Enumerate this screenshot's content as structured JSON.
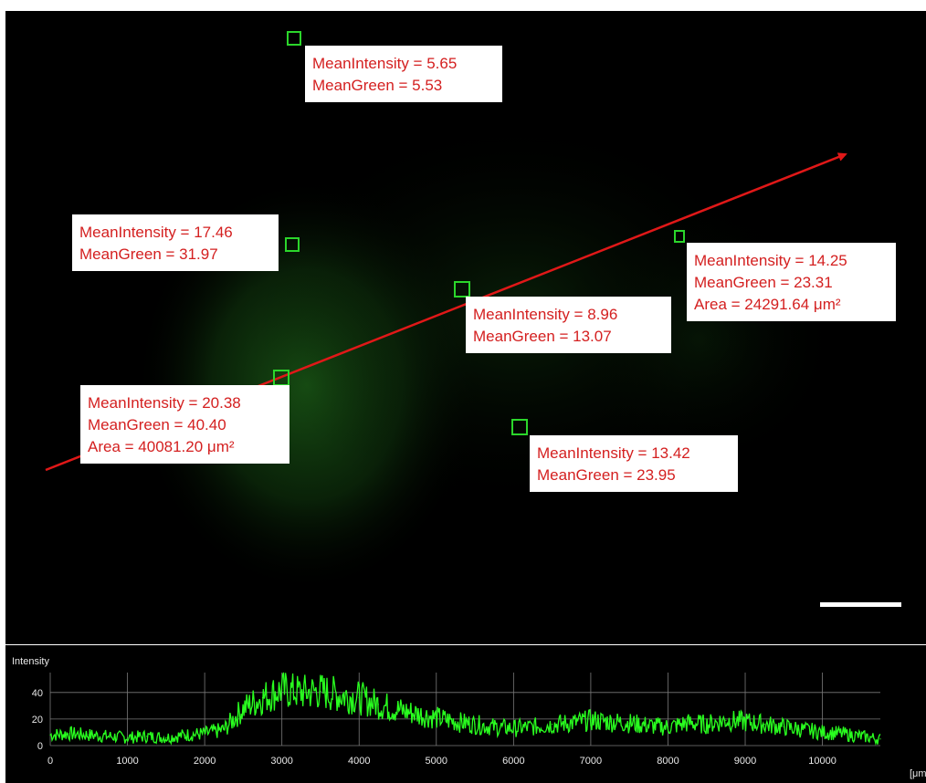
{
  "colors": {
    "background": "#000000",
    "label_text": "#d42020",
    "label_box": "#ffffff",
    "roi_box": "#2bd62b",
    "arrow": "#e01818",
    "profile_line": "#29ff1f",
    "grid": "#7a7a7a"
  },
  "annotations": [
    {
      "lines": [
        "MeanIntensity = 5.65",
        "MeanGreen = 5.53"
      ]
    },
    {
      "lines": [
        "MeanIntensity = 17.46",
        "MeanGreen = 31.97"
      ]
    },
    {
      "lines": [
        "MeanIntensity = 14.25",
        "MeanGreen = 23.31",
        "Area = 24291.64 μm²"
      ]
    },
    {
      "lines": [
        "MeanIntensity = 8.96",
        "MeanGreen = 13.07"
      ]
    },
    {
      "lines": [
        "MeanIntensity = 20.38",
        "MeanGreen = 40.40",
        "Area = 40081.20 μm²"
      ]
    },
    {
      "lines": [
        "MeanIntensity = 13.42",
        "MeanGreen = 23.95"
      ]
    }
  ],
  "profile": {
    "ylabel": "Intensity",
    "x_unit": "[μm",
    "xticks": [
      0,
      1000,
      2000,
      3000,
      4000,
      5000,
      6000,
      7000,
      8000,
      9000,
      10000
    ],
    "yticks": [
      0,
      20,
      40
    ],
    "xlim": [
      0,
      10750
    ],
    "ylim": [
      0,
      55
    ],
    "grid": true
  },
  "chart_data": {
    "type": "line",
    "title": "",
    "xlabel": "",
    "ylabel": "Intensity",
    "xlim": [
      0,
      10750
    ],
    "ylim": [
      0,
      55
    ],
    "series": [
      {
        "x": [
          0,
          250,
          500,
          750,
          1000,
          1250,
          1500,
          1750,
          2000,
          2250,
          2500,
          2750,
          3000,
          3250,
          3500,
          3750,
          4000,
          4250,
          4500,
          4750,
          5000,
          5250,
          5500,
          5750,
          6000,
          6250,
          6500,
          6750,
          7000,
          7250,
          7500,
          7750,
          8000,
          8250,
          8500,
          8750,
          9000,
          9250,
          9500,
          9750,
          10000,
          10250,
          10500,
          10750
        ],
        "values": [
          8,
          9,
          8,
          7,
          6,
          7,
          6,
          8,
          9,
          12,
          28,
          36,
          42,
          40,
          41,
          38,
          36,
          31,
          27,
          24,
          21,
          18,
          16,
          14,
          13,
          14,
          16,
          17,
          19,
          18,
          17,
          15,
          14,
          17,
          16,
          19,
          18,
          16,
          14,
          12,
          10,
          9,
          7,
          5
        ]
      }
    ]
  }
}
